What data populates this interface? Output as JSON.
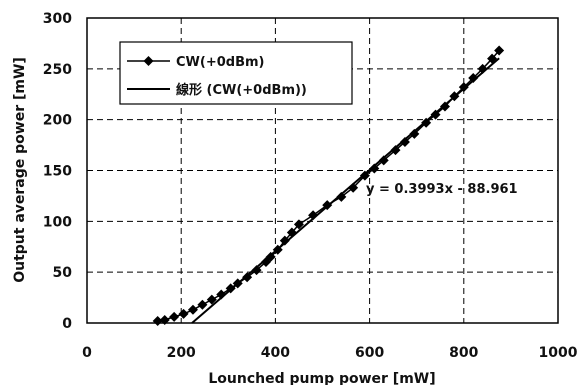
{
  "chart_data": {
    "type": "scatter",
    "xlabel": "Lounched pump power [mW]",
    "ylabel": "Output average power [mW]",
    "xlim": [
      0,
      1000
    ],
    "ylim": [
      0,
      300
    ],
    "xticks": [
      "0",
      "200",
      "400",
      "600",
      "800",
      "1000"
    ],
    "yticks": [
      "0",
      "50",
      "100",
      "150",
      "200",
      "250",
      "300"
    ],
    "grid": true,
    "legend_position": "top-left",
    "series": [
      {
        "name": "CW(+0dBm)",
        "marker": "diamond",
        "color": "#000000",
        "x": [
          150,
          165,
          185,
          205,
          225,
          245,
          265,
          285,
          305,
          320,
          340,
          360,
          380,
          390,
          405,
          420,
          435,
          450,
          480,
          510,
          540,
          565,
          590,
          610,
          630,
          655,
          675,
          695,
          720,
          740,
          760,
          780,
          800,
          820,
          840,
          860,
          875
        ],
        "y": [
          2,
          3,
          6,
          9,
          13,
          18,
          23,
          28,
          34,
          39,
          45,
          52,
          60,
          65,
          72,
          81,
          89,
          97,
          106,
          116,
          124,
          133,
          145,
          152,
          160,
          170,
          178,
          186,
          197,
          205,
          213,
          223,
          232,
          241,
          250,
          260,
          268
        ]
      },
      {
        "name": "線形 (CW(+0dBm))",
        "marker": "none",
        "color": "#000000",
        "x": [
          223,
          875
        ],
        "y": [
          0,
          260.4
        ]
      }
    ],
    "annotations": [
      {
        "text": "y = 0.3993x - 88.961"
      }
    ]
  }
}
